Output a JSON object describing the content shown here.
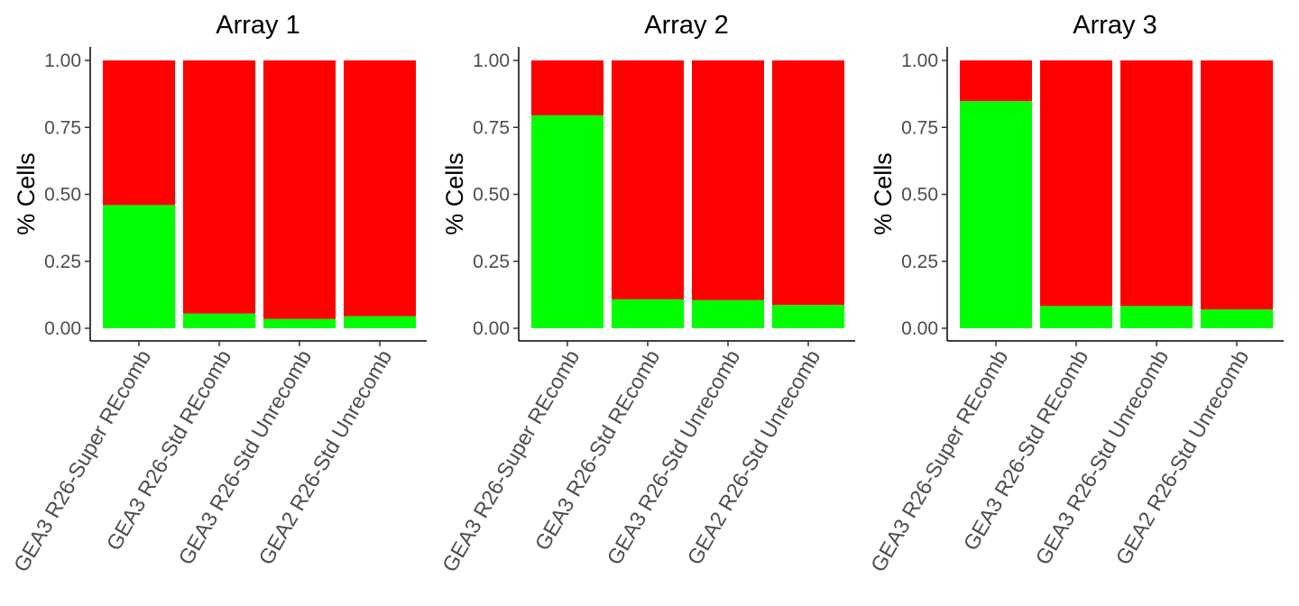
{
  "chart_data": [
    {
      "type": "bar",
      "stacked": true,
      "title": "Array 1",
      "xlabel": "",
      "ylabel": "% Cells",
      "ylim": [
        0,
        1
      ],
      "yticks": [
        "0.00",
        "0.25",
        "0.50",
        "0.75",
        "1.00"
      ],
      "categories": [
        "GEA3 R26-Super REcomb",
        "GEA3 R26-Std REcomb",
        "GEA3 R26-Std Unrecomb",
        "GEA2 R26-Std Unrecomb"
      ],
      "series": [
        {
          "color": "#00ff00",
          "values": [
            0.46,
            0.055,
            0.035,
            0.045
          ]
        },
        {
          "color": "#ff0000",
          "values": [
            0.54,
            0.945,
            0.965,
            0.955
          ]
        }
      ],
      "grid": false,
      "legend": "none"
    },
    {
      "type": "bar",
      "stacked": true,
      "title": "Array 2",
      "xlabel": "",
      "ylabel": "% Cells",
      "ylim": [
        0,
        1
      ],
      "yticks": [
        "0.00",
        "0.25",
        "0.50",
        "0.75",
        "1.00"
      ],
      "categories": [
        "GEA3 R26-Super REcomb",
        "GEA3 R26-Std REcomb",
        "GEA3 R26-Std Unrecomb",
        "GEA2 R26-Std Unrecomb"
      ],
      "series": [
        {
          "color": "#00ff00",
          "values": [
            0.795,
            0.108,
            0.105,
            0.087
          ]
        },
        {
          "color": "#ff0000",
          "values": [
            0.205,
            0.892,
            0.895,
            0.913
          ]
        }
      ],
      "grid": false,
      "legend": "none"
    },
    {
      "type": "bar",
      "stacked": true,
      "title": "Array 3",
      "xlabel": "",
      "ylabel": "% Cells",
      "ylim": [
        0,
        1
      ],
      "yticks": [
        "0.00",
        "0.25",
        "0.50",
        "0.75",
        "1.00"
      ],
      "categories": [
        "GEA3 R26-Super REcomb",
        "GEA3 R26-Std REcomb",
        "GEA3 R26-Std Unrecomb",
        "GEA2 R26-Std Unrecomb"
      ],
      "series": [
        {
          "color": "#00ff00",
          "values": [
            0.848,
            0.083,
            0.083,
            0.07
          ]
        },
        {
          "color": "#ff0000",
          "values": [
            0.152,
            0.917,
            0.917,
            0.93
          ]
        }
      ],
      "grid": false,
      "legend": "none"
    }
  ]
}
